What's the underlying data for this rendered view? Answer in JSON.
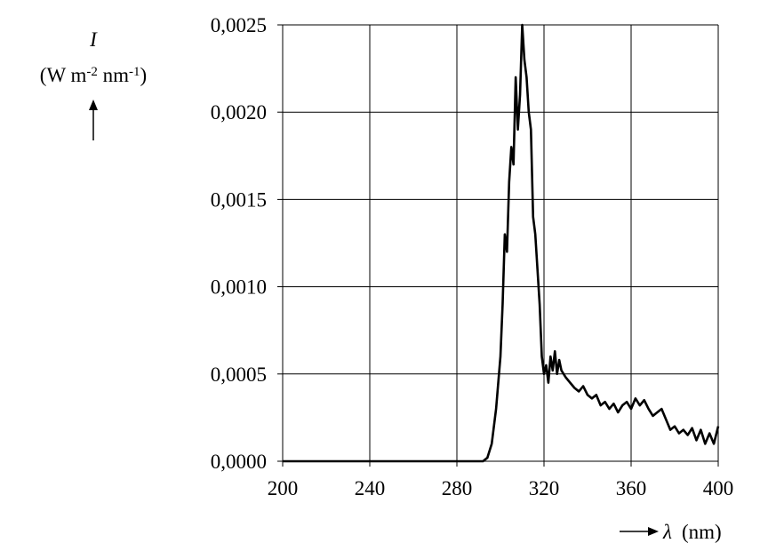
{
  "chart_data": {
    "type": "line",
    "y_label": "I",
    "y_unit": [
      "(W m",
      "-2",
      " nm",
      "-1",
      ")"
    ],
    "x_label": "λ",
    "x_unit": "(nm)",
    "x": [
      200,
      290,
      292,
      294,
      296,
      298,
      300,
      301,
      302,
      303,
      304,
      305,
      306,
      307,
      308,
      309,
      310,
      311,
      312,
      313,
      314,
      315,
      316,
      317,
      318,
      319,
      320,
      321,
      322,
      323,
      324,
      325,
      326,
      327,
      328,
      330,
      332,
      334,
      336,
      338,
      340,
      342,
      344,
      346,
      348,
      350,
      352,
      354,
      356,
      358,
      360,
      362,
      364,
      366,
      368,
      370,
      372,
      374,
      376,
      378,
      380,
      382,
      384,
      386,
      388,
      390,
      392,
      394,
      396,
      398,
      400
    ],
    "series": [
      {
        "color": "#000000",
        "values": [
          0,
          0,
          0,
          2e-05,
          0.0001,
          0.0003,
          0.0006,
          0.0009,
          0.0013,
          0.0012,
          0.0016,
          0.0018,
          0.0017,
          0.0022,
          0.0019,
          0.0021,
          0.0025,
          0.0023,
          0.0022,
          0.002,
          0.0019,
          0.0014,
          0.0013,
          0.0011,
          0.0009,
          0.0006,
          0.0005,
          0.00055,
          0.00045,
          0.0006,
          0.00052,
          0.00063,
          0.0005,
          0.00058,
          0.00052,
          0.00048,
          0.00045,
          0.00042,
          0.0004,
          0.00043,
          0.00038,
          0.00036,
          0.00038,
          0.00032,
          0.00034,
          0.0003,
          0.00033,
          0.00028,
          0.00032,
          0.00034,
          0.0003,
          0.00036,
          0.00032,
          0.00035,
          0.0003,
          0.00026,
          0.00028,
          0.0003,
          0.00024,
          0.00018,
          0.0002,
          0.00016,
          0.00018,
          0.00015,
          0.00019,
          0.00012,
          0.00018,
          0.0001,
          0.00016,
          0.0001,
          0.0002
        ]
      }
    ],
    "xlim": [
      200,
      400
    ],
    "xticks": [
      200,
      240,
      280,
      320,
      360,
      400
    ],
    "ylim": [
      0,
      0.0025
    ],
    "yticks": [
      {
        "value": 0,
        "label": "0,0000"
      },
      {
        "value": 0.0005,
        "label": "0,0005"
      },
      {
        "value": 0.001,
        "label": "0,0010"
      },
      {
        "value": 0.0015,
        "label": "0,0015"
      },
      {
        "value": 0.002,
        "label": "0,0020"
      },
      {
        "value": 0.0025,
        "label": "0,0025"
      }
    ],
    "grid": true
  }
}
